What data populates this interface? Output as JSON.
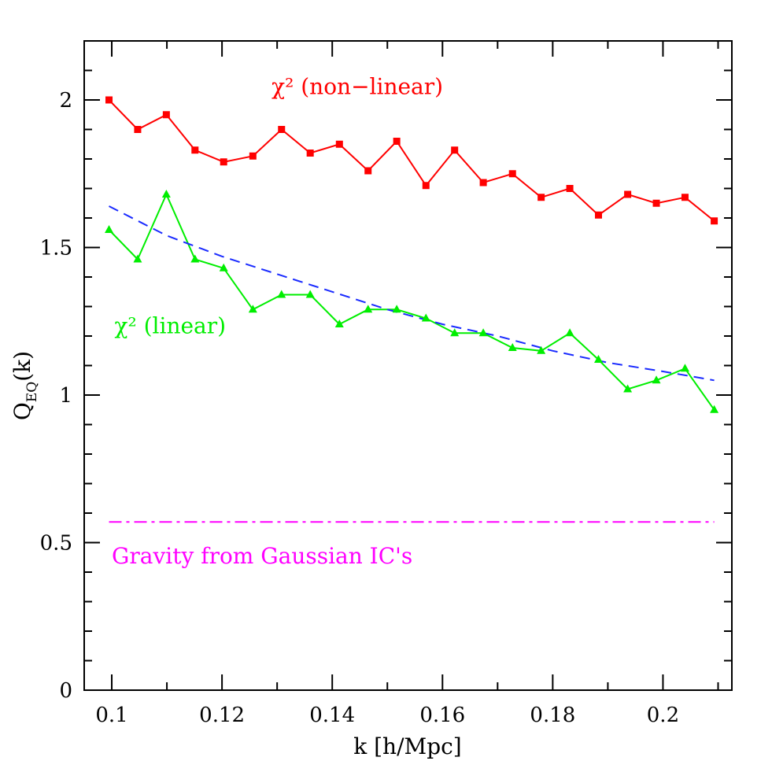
{
  "chart_data": {
    "type": "line",
    "xlabel": "k [h/Mpc]",
    "ylabel": "Q_EQ(k)",
    "ylabel_main": "Q",
    "ylabel_sub": "EQ",
    "ylabel_tail": "(k)",
    "xlim": [
      0.095,
      0.2125
    ],
    "ylim": [
      0,
      2.2
    ],
    "x_ticks": [
      0.1,
      0.12,
      0.14,
      0.16,
      0.18,
      0.2
    ],
    "x_tick_labels": [
      "0.1",
      "0.12",
      "0.14",
      "0.16",
      "0.18",
      "0.2"
    ],
    "y_ticks": [
      0,
      0.5,
      1,
      1.5,
      2
    ],
    "y_tick_labels": [
      "0",
      "0.5",
      "1",
      "1.5",
      "2"
    ],
    "grid": false,
    "series": [
      {
        "name": "χ² (non−linear)",
        "color": "#ff0000",
        "style": "solid",
        "marker": "square",
        "x": [
          0.0995,
          0.1047,
          0.1099,
          0.1151,
          0.1203,
          0.1256,
          0.1308,
          0.136,
          0.1413,
          0.1465,
          0.1517,
          0.157,
          0.1622,
          0.1674,
          0.1727,
          0.1779,
          0.1831,
          0.1883,
          0.1936,
          0.1988,
          0.204,
          0.2093
        ],
        "y": [
          2.0,
          1.9,
          1.95,
          1.83,
          1.79,
          1.81,
          1.9,
          1.82,
          1.85,
          1.76,
          1.86,
          1.71,
          1.83,
          1.72,
          1.75,
          1.67,
          1.7,
          1.61,
          1.68,
          1.65,
          1.67,
          1.59
        ]
      },
      {
        "name": "χ² (linear)",
        "color": "#00ee00",
        "style": "solid",
        "marker": "triangle",
        "x": [
          0.0995,
          0.1047,
          0.1099,
          0.1151,
          0.1203,
          0.1256,
          0.1308,
          0.136,
          0.1413,
          0.1465,
          0.1517,
          0.157,
          0.1622,
          0.1674,
          0.1727,
          0.1779,
          0.1831,
          0.1883,
          0.1936,
          0.1988,
          0.204,
          0.2093
        ],
        "y": [
          1.56,
          1.46,
          1.68,
          1.46,
          1.43,
          1.29,
          1.34,
          1.34,
          1.24,
          1.29,
          1.29,
          1.26,
          1.21,
          1.21,
          1.16,
          1.15,
          1.21,
          1.12,
          1.02,
          1.05,
          1.09,
          0.95
        ]
      },
      {
        "color": "#1a2bff",
        "style": "dashed",
        "marker": "none",
        "x": [
          0.0995,
          0.11,
          0.12,
          0.13,
          0.14,
          0.15,
          0.16,
          0.17,
          0.18,
          0.19,
          0.2,
          0.2093
        ],
        "y": [
          1.64,
          1.54,
          1.47,
          1.41,
          1.35,
          1.29,
          1.24,
          1.2,
          1.15,
          1.11,
          1.08,
          1.05
        ]
      },
      {
        "name": "Gravity from Gaussian IC's",
        "color": "#ff00ff",
        "style": "dashdot",
        "marker": "none",
        "x": [
          0.0995,
          0.2093
        ],
        "y": [
          0.57,
          0.57
        ]
      }
    ],
    "annotations": [
      {
        "text": "χ² (non−linear)",
        "x": 0.129,
        "y": 2.02,
        "color": "#ff0000"
      },
      {
        "text": "χ² (linear)",
        "x": 0.1005,
        "y": 1.21,
        "color": "#00ee00"
      },
      {
        "text": "Gravity from Gaussian IC's",
        "x": 0.1,
        "y": 0.43,
        "color": "#ff00ff"
      }
    ]
  }
}
